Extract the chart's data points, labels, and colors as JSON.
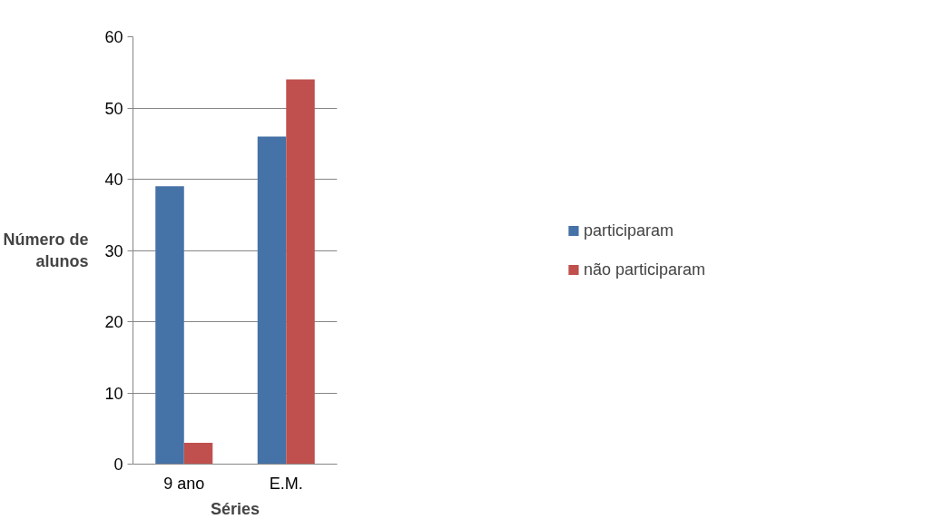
{
  "chart_data": {
    "type": "bar",
    "xlabel": "Séries",
    "ylabel": "Número de alunos",
    "categories": [
      "9 ano",
      "E.M."
    ],
    "series": [
      {
        "name": "participaram",
        "color": "#4572a7",
        "values": [
          39,
          46
        ]
      },
      {
        "name": "não participaram",
        "color": "#c0504d",
        "values": [
          3,
          54
        ]
      }
    ],
    "ylim": [
      0,
      60
    ],
    "yticks": [
      0,
      10,
      20,
      30,
      40,
      50,
      60
    ],
    "grid": "y",
    "legend": "right"
  }
}
